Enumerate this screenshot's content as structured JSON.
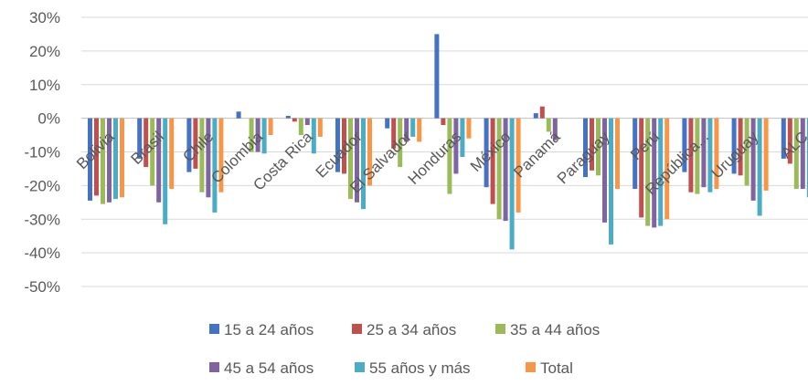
{
  "chart_data": {
    "type": "bar",
    "title": "",
    "xlabel": "",
    "ylabel": "",
    "ylim": [
      -50,
      30
    ],
    "yticks": [
      30,
      20,
      10,
      0,
      -10,
      -20,
      -30,
      -40,
      -50
    ],
    "ytick_labels": [
      "30%",
      "20%",
      "10%",
      "0%",
      "-10%",
      "-20%",
      "-30%",
      "-40%",
      "-50%"
    ],
    "grid": true,
    "legend_position": "bottom",
    "categories": [
      "Bolivia",
      "Brasil",
      "Chile",
      "Colombia",
      "Costa Rica",
      "Ecuador",
      "El Salvador",
      "Honduras",
      "México",
      "Panamá",
      "Paraguay",
      "Perú",
      "República...",
      "Uruguay",
      "ALC"
    ],
    "series": [
      {
        "name": "15 a 24 años",
        "color": "#4472c4",
        "values": [
          -24.5,
          -12,
          -16,
          2,
          0.7,
          -16,
          -3,
          25,
          -20.5,
          1.5,
          -17.5,
          -21,
          -16,
          -16.5,
          -12
        ]
      },
      {
        "name": "25 a 34 años",
        "color": "#c0504d",
        "values": [
          -23,
          -14.5,
          -15,
          0,
          -1,
          -16.5,
          -9,
          -2,
          -25.5,
          3.5,
          -15.5,
          -29.5,
          -22,
          -17,
          -13.5
        ]
      },
      {
        "name": "35 a 44 años",
        "color": "#9bbb59",
        "values": [
          -25.5,
          -20,
          -22,
          -10,
          -5,
          -24,
          -14.5,
          -22.5,
          -30,
          -4,
          -17,
          -32,
          -22.5,
          -20,
          -21
        ]
      },
      {
        "name": "45 a 54 años",
        "color": "#8064a2",
        "values": [
          -25,
          -25,
          -23.5,
          -10,
          -2,
          -25,
          -7,
          -16.5,
          -30.5,
          -6.5,
          -31,
          -32.5,
          -20.5,
          -24.5,
          -21
        ]
      },
      {
        "name": "55 años y más",
        "color": "#4bacc6",
        "values": [
          -24,
          -31.5,
          -28,
          -10.5,
          -10.5,
          -27,
          -5.5,
          -11.5,
          -39,
          0,
          -37.5,
          -32,
          -22,
          -29,
          -23.5
        ]
      },
      {
        "name": "Total",
        "color": "#f79646",
        "values": [
          -23.5,
          -21,
          -22,
          -5,
          -5.5,
          -20,
          -7,
          -6,
          -28,
          0,
          -21,
          -30,
          -21,
          -21.5,
          -18
        ]
      }
    ]
  }
}
